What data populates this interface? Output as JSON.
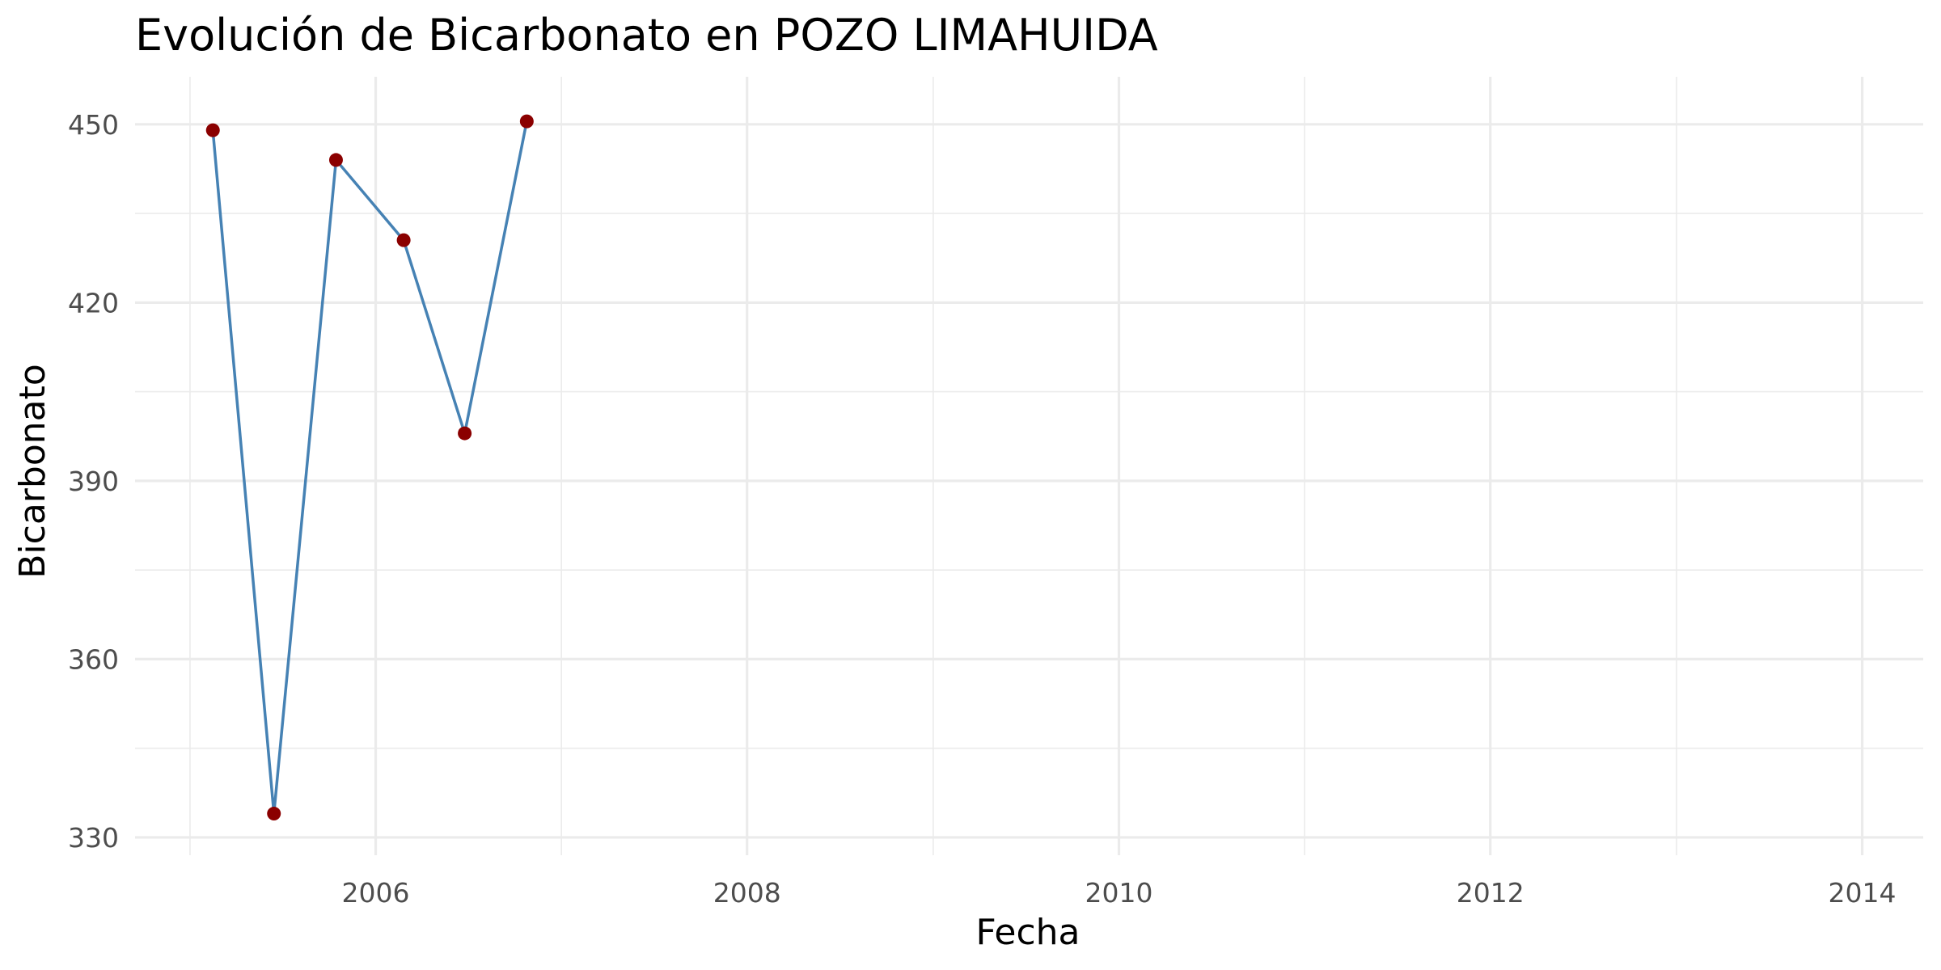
{
  "chart_data": {
    "type": "line",
    "title": "Evolución de Bicarbonato en POZO LIMAHUIDA",
    "xlabel": "Fecha",
    "ylabel": "Bicarbonato",
    "x_axis_type": "date",
    "xlim": [
      "2004-09-15",
      "2014-05-01"
    ],
    "ylim": [
      327,
      458
    ],
    "x_ticks": [
      {
        "value": "2006-01-01",
        "label": "2006"
      },
      {
        "value": "2008-01-01",
        "label": "2008"
      },
      {
        "value": "2010-01-01",
        "label": "2010"
      },
      {
        "value": "2012-01-01",
        "label": "2012"
      },
      {
        "value": "2014-01-01",
        "label": "2014"
      }
    ],
    "x_minor_ticks": [
      "2005-01-01",
      "2007-01-01",
      "2009-01-01",
      "2011-01-01",
      "2013-01-01"
    ],
    "y_ticks": [
      330,
      360,
      390,
      420,
      450
    ],
    "y_minor_ticks": [
      345,
      375,
      405,
      435
    ],
    "grid": true,
    "series": [
      {
        "line_color": "#4682b4",
        "point_color": "#8b0000",
        "points": [
          {
            "x": "2005-02-15",
            "y": 449
          },
          {
            "x": "2005-06-15",
            "y": 334
          },
          {
            "x": "2005-10-15",
            "y": 444
          },
          {
            "x": "2006-02-25",
            "y": 430.5
          },
          {
            "x": "2006-06-25",
            "y": 398
          },
          {
            "x": "2006-10-25",
            "y": 450.5
          }
        ]
      }
    ]
  }
}
